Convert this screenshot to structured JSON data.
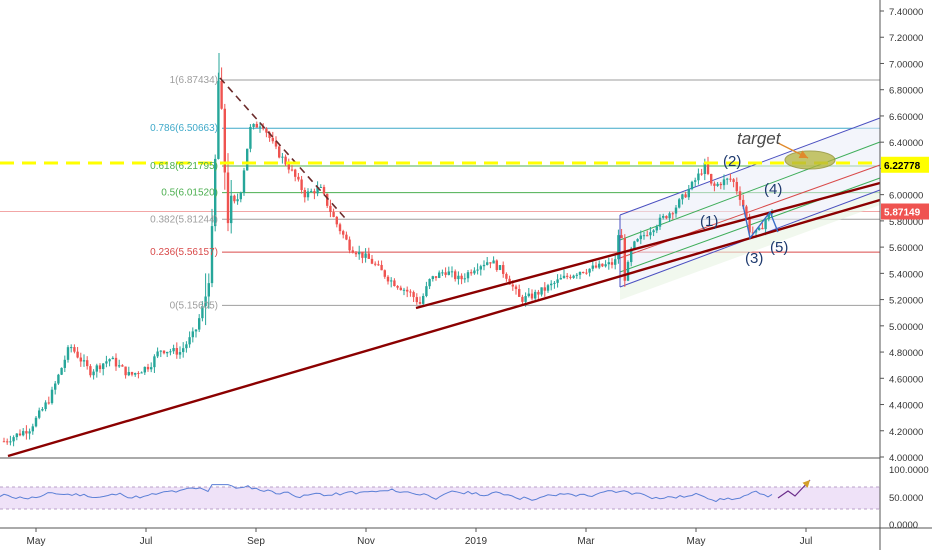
{
  "chart_data": {
    "type": "candlestick",
    "price_axis": {
      "ticks": [
        "7.40000",
        "7.20000",
        "7.00000",
        "6.80000",
        "6.60000",
        "6.40000",
        "6.20000",
        "6.00000",
        "5.80000",
        "5.60000",
        "5.40000",
        "5.20000",
        "5.00000",
        "4.80000",
        "4.60000",
        "4.40000",
        "4.20000",
        "4.00000"
      ],
      "range": [
        4.0,
        7.5
      ]
    },
    "time_axis": {
      "labels": [
        {
          "text": "May",
          "month_index": 0
        },
        {
          "text": "Jul",
          "month_index": 2
        },
        {
          "text": "Sep",
          "month_index": 4
        },
        {
          "text": "Nov",
          "month_index": 6
        },
        {
          "text": "2019",
          "month_index": 8
        },
        {
          "text": "Mar",
          "month_index": 10
        },
        {
          "text": "May",
          "month_index": 12
        },
        {
          "text": "Jul",
          "month_index": 14
        }
      ]
    },
    "fib_levels": [
      {
        "label": "1(6.87434)",
        "value": 6.87434,
        "color": "#9e9e9e"
      },
      {
        "label": "0.786(6.50663)",
        "value": 6.50663,
        "color": "#3fa9c9"
      },
      {
        "label": "0.618(6.21795)",
        "value": 6.21795,
        "color": "#4caf50"
      },
      {
        "label": "0.5(6.01520)",
        "value": 6.0152,
        "color": "#4caf50"
      },
      {
        "label": "0.382(5.81244)",
        "value": 5.81244,
        "color": "#9e9e9e"
      },
      {
        "label": "0.236(5.56157)",
        "value": 5.56157,
        "color": "#d94a4a"
      },
      {
        "label": "0(5.15605)",
        "value": 5.15605,
        "color": "#9e9e9e"
      }
    ],
    "price_badges": [
      {
        "text": "6.22778",
        "value": 6.22778,
        "bg": "#ffff00",
        "fg": "#000000"
      },
      {
        "text": "5.87149",
        "value": 5.87149,
        "bg": "#ef5350",
        "fg": "#ffffff"
      }
    ],
    "wave_labels": [
      "(1)",
      "(2)",
      "(3)",
      "(4)",
      "(5)"
    ],
    "annotation": "target",
    "rsi": {
      "ticks": [
        "100.0000",
        "50.0000",
        "0.0000"
      ],
      "upper_band": 70,
      "lower_band": 30
    },
    "colors": {
      "up": "#26a69a",
      "down": "#ef5350",
      "trendline": "#8b0000",
      "accent_dash": "#ffff00",
      "rsi_line": "#5b7fd6",
      "rsi_band": "#e8d6f5"
    }
  }
}
